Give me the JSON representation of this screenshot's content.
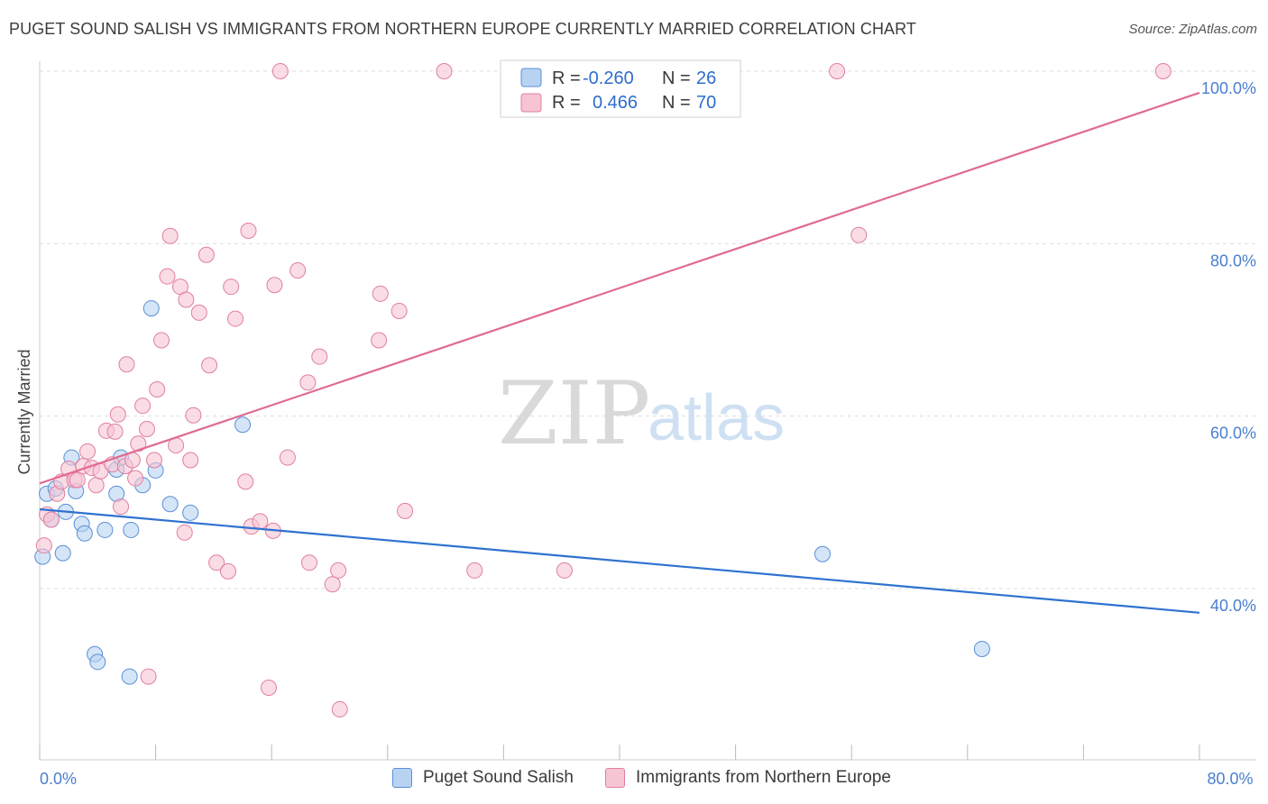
{
  "title": "PUGET SOUND SALISH VS IMMIGRANTS FROM NORTHERN EUROPE CURRENTLY MARRIED CORRELATION CHART",
  "source": "Source: ZipAtlas.com",
  "watermark": {
    "zip": "ZIP",
    "atlas": "atlas"
  },
  "legend_box": {
    "rows": [
      {
        "r_label": "R =",
        "r_value": "-0.260",
        "n_label": "N =",
        "n_value": "26"
      },
      {
        "r_label": "R =",
        "r_value": "0.466",
        "n_label": "N =",
        "n_value": "70"
      }
    ]
  },
  "bottom_legend": {
    "series1": "Puget Sound Salish",
    "series2": "Immigrants from Northern Europe"
  },
  "colors": {
    "blue_fill": "#b8d3f2",
    "blue_stroke": "#5a8fd8",
    "blue_line": "#2f72d0",
    "pink_fill": "#f7c4d3",
    "pink_stroke": "#e07fa0",
    "pink_line": "#e06a94",
    "tick_color": "#4a7fd0"
  },
  "chart_data": {
    "type": "scatter",
    "title": "PUGET SOUND SALISH VS IMMIGRANTS FROM NORTHERN EUROPE CURRENTLY MARRIED CORRELATION CHART",
    "xlabel": "",
    "ylabel": "Currently Married",
    "xlim": [
      0,
      80
    ],
    "ylim": [
      20,
      100
    ],
    "x_ticks": [
      0,
      8,
      16,
      24,
      32,
      40,
      48,
      56,
      64,
      72,
      80
    ],
    "x_tick_labels": [
      "0.0%",
      "",
      "",
      "",
      "",
      "",
      "",
      "",
      "",
      "",
      "80.0%"
    ],
    "y_ticks": [
      40,
      60,
      80,
      100
    ],
    "y_tick_labels": [
      "40.0%",
      "60.0%",
      "80.0%",
      "100.0%"
    ],
    "grid": true,
    "legend_position": "top-center",
    "series": [
      {
        "name": "Puget Sound Salish",
        "color": "blue",
        "r": -0.26,
        "n": 26,
        "trend": {
          "x": [
            0,
            80
          ],
          "y": [
            49.2,
            37.2
          ]
        },
        "points": [
          [
            0.2,
            43.7
          ],
          [
            0.5,
            51.0
          ],
          [
            0.8,
            48.0
          ],
          [
            1.1,
            51.6
          ],
          [
            1.6,
            44.1
          ],
          [
            1.8,
            48.9
          ],
          [
            2.2,
            55.2
          ],
          [
            2.5,
            51.3
          ],
          [
            2.9,
            47.5
          ],
          [
            3.1,
            46.4
          ],
          [
            3.8,
            32.4
          ],
          [
            4.0,
            31.5
          ],
          [
            4.5,
            46.8
          ],
          [
            5.3,
            53.8
          ],
          [
            5.3,
            51.0
          ],
          [
            5.6,
            55.2
          ],
          [
            6.2,
            29.8
          ],
          [
            6.3,
            46.8
          ],
          [
            7.1,
            52.0
          ],
          [
            7.7,
            72.5
          ],
          [
            8.0,
            53.7
          ],
          [
            9.0,
            49.8
          ],
          [
            10.4,
            48.8
          ],
          [
            14.0,
            59.0
          ],
          [
            54.0,
            44.0
          ],
          [
            65.0,
            33.0
          ]
        ]
      },
      {
        "name": "Immigrants from Northern Europe",
        "color": "pink",
        "r": 0.466,
        "n": 70,
        "trend": {
          "x": [
            0,
            80
          ],
          "y": [
            52.2,
            97.5
          ]
        },
        "points": [
          [
            0.3,
            45.0
          ],
          [
            0.5,
            48.6
          ],
          [
            0.8,
            48.0
          ],
          [
            1.2,
            51.0
          ],
          [
            1.5,
            52.4
          ],
          [
            2.0,
            53.9
          ],
          [
            2.4,
            52.6
          ],
          [
            2.6,
            52.6
          ],
          [
            3.0,
            54.2
          ],
          [
            3.3,
            55.9
          ],
          [
            3.6,
            54.0
          ],
          [
            3.9,
            52.0
          ],
          [
            4.2,
            53.6
          ],
          [
            4.6,
            58.3
          ],
          [
            5.0,
            54.4
          ],
          [
            5.2,
            58.2
          ],
          [
            5.4,
            60.2
          ],
          [
            5.6,
            49.5
          ],
          [
            5.9,
            54.2
          ],
          [
            6.0,
            66.0
          ],
          [
            6.4,
            54.9
          ],
          [
            6.6,
            52.8
          ],
          [
            6.8,
            56.8
          ],
          [
            7.1,
            61.2
          ],
          [
            7.4,
            58.5
          ],
          [
            7.9,
            54.9
          ],
          [
            8.1,
            63.1
          ],
          [
            8.4,
            68.8
          ],
          [
            8.8,
            76.2
          ],
          [
            9.0,
            80.9
          ],
          [
            9.4,
            56.6
          ],
          [
            9.7,
            75.0
          ],
          [
            10.0,
            46.5
          ],
          [
            10.1,
            73.5
          ],
          [
            10.4,
            54.9
          ],
          [
            10.6,
            60.1
          ],
          [
            11.0,
            72.0
          ],
          [
            11.5,
            78.7
          ],
          [
            11.7,
            65.9
          ],
          [
            12.2,
            43.0
          ],
          [
            13.0,
            42.0
          ],
          [
            13.2,
            75.0
          ],
          [
            13.5,
            71.3
          ],
          [
            14.2,
            52.4
          ],
          [
            14.4,
            81.5
          ],
          [
            14.6,
            47.2
          ],
          [
            15.2,
            47.8
          ],
          [
            15.8,
            28.5
          ],
          [
            16.1,
            46.7
          ],
          [
            16.2,
            75.2
          ],
          [
            17.1,
            55.2
          ],
          [
            17.8,
            76.9
          ],
          [
            18.5,
            63.9
          ],
          [
            18.6,
            43.0
          ],
          [
            19.3,
            66.9
          ],
          [
            20.2,
            40.5
          ],
          [
            20.6,
            42.1
          ],
          [
            20.7,
            26.0
          ],
          [
            23.4,
            68.8
          ],
          [
            23.5,
            74.2
          ],
          [
            24.8,
            72.2
          ],
          [
            25.2,
            49.0
          ],
          [
            30.0,
            42.1
          ],
          [
            36.2,
            42.1
          ],
          [
            27.9,
            100
          ],
          [
            16.6,
            100
          ],
          [
            55.0,
            100
          ],
          [
            77.5,
            100
          ],
          [
            56.5,
            81.0
          ],
          [
            7.5,
            29.8
          ]
        ]
      }
    ]
  }
}
